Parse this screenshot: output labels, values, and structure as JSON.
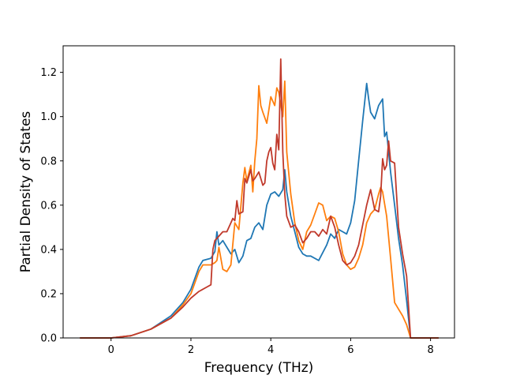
{
  "chart_data": {
    "type": "line",
    "title": "",
    "xlabel": "Frequency (THz)",
    "ylabel": "Partial Density of States",
    "xlim": [
      -1.2,
      8.6
    ],
    "ylim": [
      0.0,
      1.32
    ],
    "xticks": [
      0,
      2,
      4,
      6,
      8
    ],
    "yticks": [
      0.0,
      0.2,
      0.4,
      0.6,
      0.8,
      1.0,
      1.2
    ],
    "xtick_labels": [
      "0",
      "2",
      "4",
      "6",
      "8"
    ],
    "ytick_labels": [
      "0.0",
      "0.2",
      "0.4",
      "0.6",
      "0.8",
      "1.0",
      "1.2"
    ],
    "grid": false,
    "legend": false,
    "series": [
      {
        "color": "#1f77b4",
        "x": [
          -0.78,
          0,
          0.5,
          1,
          1.5,
          1.8,
          2.0,
          2.2,
          2.3,
          2.5,
          2.6,
          2.65,
          2.7,
          2.8,
          2.9,
          3.0,
          3.1,
          3.2,
          3.3,
          3.4,
          3.5,
          3.6,
          3.7,
          3.8,
          3.9,
          4.0,
          4.1,
          4.2,
          4.3,
          4.35,
          4.4,
          4.5,
          4.6,
          4.7,
          4.8,
          4.9,
          5.0,
          5.2,
          5.4,
          5.5,
          5.6,
          5.7,
          5.8,
          5.9,
          6.0,
          6.1,
          6.2,
          6.3,
          6.4,
          6.45,
          6.5,
          6.6,
          6.7,
          6.8,
          6.85,
          6.9,
          7.0,
          7.1,
          7.2,
          7.3,
          7.4,
          7.5,
          8.2
        ],
        "y": [
          0.0,
          0.0,
          0.01,
          0.04,
          0.1,
          0.16,
          0.22,
          0.32,
          0.35,
          0.36,
          0.39,
          0.48,
          0.42,
          0.44,
          0.41,
          0.38,
          0.4,
          0.34,
          0.37,
          0.44,
          0.45,
          0.5,
          0.52,
          0.49,
          0.6,
          0.65,
          0.66,
          0.64,
          0.67,
          0.76,
          0.66,
          0.55,
          0.48,
          0.41,
          0.38,
          0.37,
          0.37,
          0.35,
          0.42,
          0.47,
          0.45,
          0.49,
          0.48,
          0.47,
          0.52,
          0.62,
          0.8,
          0.98,
          1.15,
          1.08,
          1.02,
          0.99,
          1.05,
          1.08,
          0.91,
          0.93,
          0.75,
          0.6,
          0.45,
          0.33,
          0.17,
          0.0,
          0.0
        ]
      },
      {
        "color": "#ff7f0e",
        "x": [
          -0.78,
          0,
          0.5,
          1,
          1.5,
          1.8,
          2.0,
          2.2,
          2.3,
          2.5,
          2.6,
          2.65,
          2.7,
          2.8,
          2.9,
          3.0,
          3.1,
          3.2,
          3.3,
          3.35,
          3.4,
          3.5,
          3.55,
          3.6,
          3.65,
          3.7,
          3.75,
          3.8,
          3.9,
          3.95,
          4.0,
          4.1,
          4.15,
          4.2,
          4.3,
          4.35,
          4.4,
          4.5,
          4.6,
          4.7,
          4.8,
          4.9,
          5.0,
          5.1,
          5.2,
          5.3,
          5.4,
          5.5,
          5.6,
          5.7,
          5.8,
          5.9,
          6.0,
          6.1,
          6.2,
          6.3,
          6.4,
          6.5,
          6.6,
          6.7,
          6.75,
          6.8,
          6.9,
          7.0,
          7.1,
          7.2,
          7.3,
          7.4,
          7.5,
          8.2
        ],
        "y": [
          0.0,
          0.0,
          0.01,
          0.04,
          0.09,
          0.15,
          0.2,
          0.3,
          0.33,
          0.33,
          0.34,
          0.35,
          0.41,
          0.31,
          0.3,
          0.33,
          0.52,
          0.49,
          0.7,
          0.77,
          0.71,
          0.78,
          0.66,
          0.8,
          0.9,
          1.14,
          1.05,
          1.02,
          0.97,
          1.03,
          1.09,
          1.05,
          1.13,
          1.11,
          1.0,
          1.16,
          0.84,
          0.65,
          0.52,
          0.44,
          0.4,
          0.48,
          0.51,
          0.56,
          0.61,
          0.6,
          0.53,
          0.55,
          0.54,
          0.48,
          0.38,
          0.33,
          0.31,
          0.32,
          0.36,
          0.42,
          0.52,
          0.56,
          0.58,
          0.65,
          0.68,
          0.66,
          0.55,
          0.36,
          0.16,
          0.13,
          0.1,
          0.06,
          0.0,
          0.0
        ]
      },
      {
        "color": "#c0392b",
        "x": [
          -0.78,
          0,
          0.5,
          1,
          1.5,
          1.8,
          2.0,
          2.2,
          2.4,
          2.5,
          2.55,
          2.6,
          2.65,
          2.7,
          2.8,
          2.9,
          3.0,
          3.05,
          3.1,
          3.15,
          3.2,
          3.3,
          3.35,
          3.4,
          3.5,
          3.55,
          3.6,
          3.7,
          3.8,
          3.85,
          3.9,
          3.95,
          4.0,
          4.05,
          4.1,
          4.15,
          4.2,
          4.25,
          4.3,
          4.35,
          4.4,
          4.5,
          4.6,
          4.7,
          4.8,
          4.9,
          5.0,
          5.1,
          5.2,
          5.3,
          5.4,
          5.5,
          5.6,
          5.7,
          5.8,
          5.9,
          6.0,
          6.1,
          6.2,
          6.3,
          6.4,
          6.5,
          6.6,
          6.7,
          6.75,
          6.8,
          6.85,
          6.9,
          6.95,
          7.0,
          7.1,
          7.2,
          7.3,
          7.4,
          7.5,
          8.2
        ],
        "y": [
          0.0,
          0.0,
          0.01,
          0.04,
          0.09,
          0.14,
          0.18,
          0.21,
          0.23,
          0.24,
          0.4,
          0.44,
          0.45,
          0.46,
          0.48,
          0.48,
          0.52,
          0.54,
          0.53,
          0.62,
          0.56,
          0.57,
          0.72,
          0.7,
          0.76,
          0.71,
          0.72,
          0.75,
          0.69,
          0.7,
          0.8,
          0.84,
          0.86,
          0.79,
          0.76,
          0.92,
          0.85,
          1.26,
          0.84,
          0.65,
          0.55,
          0.5,
          0.51,
          0.48,
          0.43,
          0.45,
          0.48,
          0.48,
          0.46,
          0.49,
          0.47,
          0.55,
          0.5,
          0.42,
          0.35,
          0.33,
          0.34,
          0.37,
          0.42,
          0.51,
          0.6,
          0.67,
          0.58,
          0.57,
          0.64,
          0.81,
          0.76,
          0.78,
          0.89,
          0.8,
          0.79,
          0.5,
          0.38,
          0.28,
          0.0,
          0.0
        ]
      }
    ]
  }
}
